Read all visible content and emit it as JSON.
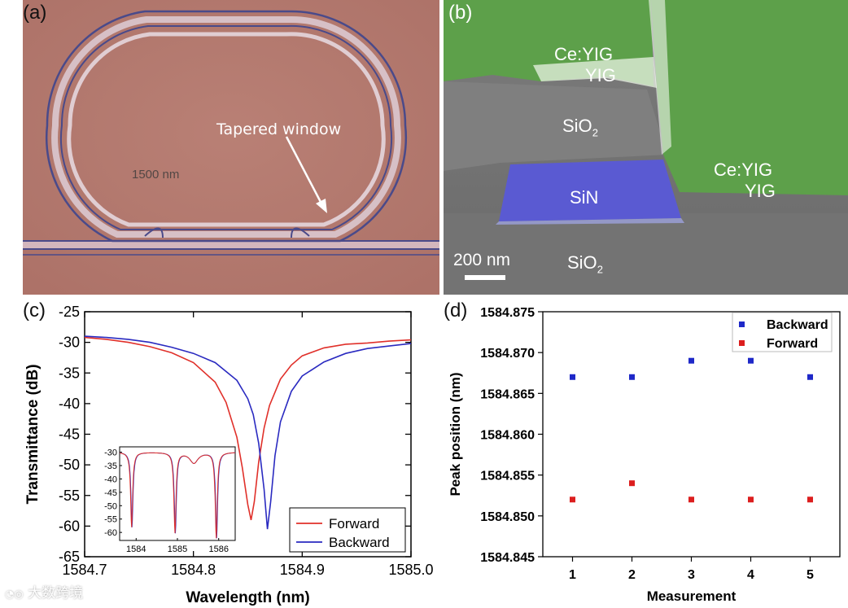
{
  "panels": {
    "a": {
      "label": "(a)",
      "annotations": {
        "tapered_window": "Tapered window",
        "gap": "1500 nm"
      },
      "colors": {
        "background": "#b4786e",
        "waveguide_dark": "#4a4a8a",
        "waveguide_light": "#d9c3c8"
      }
    },
    "b": {
      "label": "(b)",
      "labels": {
        "ce_yig_top": "Ce:YIG",
        "yig_top": "YIG",
        "sio2_upper": "SiO",
        "sio2_upper_sub": "2",
        "ce_yig_right": "Ce:YIG",
        "yig_right": "YIG",
        "sin": "SiN",
        "sio2_lower": "SiO",
        "sio2_lower_sub": "2",
        "scale_bar": "200 nm"
      },
      "colors": {
        "ceyig_green": "#5da04a",
        "sin_blue": "#5a5ad2",
        "sio2_gray": "#8a8a8a"
      }
    }
  },
  "chart_data": [
    {
      "type": "line",
      "panel_label": "(c)",
      "xlabel": "Wavelength (nm)",
      "ylabel": "Transmittance (dB)",
      "xlim": [
        1584.7,
        1585.0
      ],
      "ylim": [
        -65,
        -25
      ],
      "xticks": [
        "1584.7",
        "1584.8",
        "1584.9",
        "1585.0"
      ],
      "yticks": [
        "-25",
        "-30",
        "-35",
        "-40",
        "-45",
        "-50",
        "-55",
        "-60",
        "-65"
      ],
      "legend_position": "bottom-right",
      "series": [
        {
          "name": "Forward",
          "color": "#e0302a",
          "x": [
            1584.7,
            1584.72,
            1584.74,
            1584.76,
            1584.78,
            1584.8,
            1584.82,
            1584.83,
            1584.84,
            1584.845,
            1584.85,
            1584.853,
            1584.856,
            1584.86,
            1584.865,
            1584.87,
            1584.88,
            1584.89,
            1584.9,
            1584.92,
            1584.94,
            1584.96,
            1584.98,
            1585.0
          ],
          "y": [
            -29.2,
            -29.5,
            -30.0,
            -30.7,
            -31.7,
            -33.3,
            -36.5,
            -39.8,
            -45.5,
            -50.5,
            -56.5,
            -59.0,
            -56.0,
            -49.5,
            -44.0,
            -40.3,
            -36.0,
            -33.7,
            -32.2,
            -30.9,
            -30.3,
            -30.1,
            -29.8,
            -29.6
          ]
        },
        {
          "name": "Backward",
          "color": "#2a2ac0",
          "x": [
            1584.7,
            1584.72,
            1584.74,
            1584.76,
            1584.78,
            1584.8,
            1584.82,
            1584.84,
            1584.85,
            1584.855,
            1584.86,
            1584.865,
            1584.868,
            1584.871,
            1584.875,
            1584.88,
            1584.89,
            1584.9,
            1584.92,
            1584.94,
            1584.96,
            1584.98,
            1585.0
          ],
          "y": [
            -29.0,
            -29.2,
            -29.5,
            -30.0,
            -30.8,
            -31.8,
            -33.3,
            -36.2,
            -39.2,
            -41.8,
            -46.5,
            -54.0,
            -60.5,
            -56.0,
            -48.5,
            -43.0,
            -38.0,
            -35.5,
            -33.2,
            -31.8,
            -31.0,
            -30.6,
            -30.2
          ]
        }
      ],
      "inset": {
        "xticks": [
          "1584",
          "1585",
          "1586"
        ],
        "yticks": [
          "-30",
          "-35",
          "-40",
          "-45",
          "-50",
          "-55",
          "-60"
        ],
        "xlim": [
          1583.6,
          1586.4
        ],
        "ylim": [
          -63,
          -28
        ],
        "dips_x": [
          1583.9,
          1584.95,
          1585.95
        ],
        "dips_depth": [
          -58,
          -60,
          -62
        ],
        "small_dip_x": 1585.4,
        "small_dip_depth": -34
      }
    },
    {
      "type": "scatter",
      "panel_label": "(d)",
      "xlabel": "Measurement",
      "ylabel": "Peak position (nm)",
      "xlim": [
        0.5,
        5.5
      ],
      "ylim": [
        1584.845,
        1584.875
      ],
      "xticks": [
        "1",
        "2",
        "3",
        "4",
        "5"
      ],
      "yticks": [
        "1584.875",
        "1584.870",
        "1584.865",
        "1584.860",
        "1584.855",
        "1584.850",
        "1584.845"
      ],
      "legend_position": "top-right",
      "series": [
        {
          "name": "Backward",
          "color": "#1e28c8",
          "x": [
            1,
            2,
            3,
            4,
            5
          ],
          "y": [
            1584.867,
            1584.867,
            1584.869,
            1584.869,
            1584.867
          ]
        },
        {
          "name": "Forward",
          "color": "#dc1e1e",
          "x": [
            1,
            2,
            3,
            4,
            5
          ],
          "y": [
            1584.852,
            1584.854,
            1584.852,
            1584.852,
            1584.852
          ]
        }
      ]
    }
  ],
  "watermark": "大数跨境"
}
